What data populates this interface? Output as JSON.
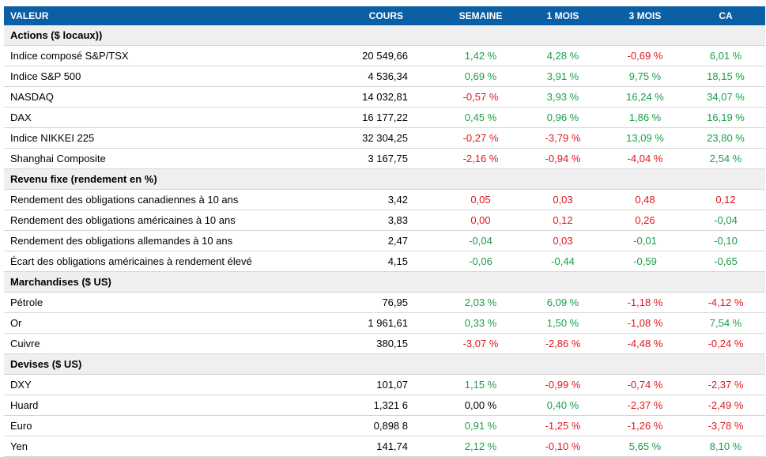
{
  "table": {
    "header": [
      "VALEUR",
      "COURS",
      "SEMAINE",
      "1 MOIS",
      "3 MOIS",
      "CA"
    ],
    "sections": [
      {
        "title": "Actions ($ locaux))",
        "rows": [
          {
            "cells": [
              "Indice composé S&P/TSX",
              "20 549,66",
              "1,42 %",
              "4,28 %",
              "-0,69 %",
              "6,01 %"
            ],
            "colors": [
              "#1a9e48",
              "#1a9e48",
              "#e0161b",
              "#1a9e48"
            ]
          },
          {
            "cells": [
              "Indice S&P 500",
              "4 536,34",
              "0,69 %",
              "3,91 %",
              "9,75 %",
              "18,15 %"
            ],
            "colors": [
              "#1a9e48",
              "#1a9e48",
              "#1a9e48",
              "#1a9e48"
            ]
          },
          {
            "cells": [
              "NASDAQ",
              "14 032,81",
              "-0,57 %",
              "3,93 %",
              "16,24 %",
              "34,07 %"
            ],
            "colors": [
              "#e0161b",
              "#1a9e48",
              "#1a9e48",
              "#1a9e48"
            ]
          },
          {
            "cells": [
              "DAX",
              "16 177,22",
              "0,45 %",
              "0,96 %",
              "1,86 %",
              "16,19 %"
            ],
            "colors": [
              "#1a9e48",
              "#1a9e48",
              "#1a9e48",
              "#1a9e48"
            ]
          },
          {
            "cells": [
              "Indice NIKKEI 225",
              "32 304,25",
              "-0,27 %",
              "-3,79 %",
              "13,09 %",
              "23,80 %"
            ],
            "colors": [
              "#e0161b",
              "#e0161b",
              "#1a9e48",
              "#1a9e48"
            ]
          },
          {
            "cells": [
              "Shanghai Composite",
              "3 167,75",
              "-2,16 %",
              "-0,94 %",
              "-4,04 %",
              "2,54 %"
            ],
            "colors": [
              "#e0161b",
              "#e0161b",
              "#e0161b",
              "#1a9e48"
            ]
          }
        ]
      },
      {
        "title": "Revenu fixe (rendement en %)",
        "rows": [
          {
            "cells": [
              "Rendement des obligations canadiennes à 10 ans",
              "3,42",
              "0,05",
              "0,03",
              "0,48",
              "0,12"
            ],
            "colors": [
              "#e0161b",
              "#e0161b",
              "#e0161b",
              "#e0161b"
            ]
          },
          {
            "cells": [
              "Rendement des obligations américaines à 10 ans",
              "3,83",
              "0,00",
              "0,12",
              "0,26",
              "-0,04"
            ],
            "colors": [
              "#e0161b",
              "#e0161b",
              "#e0161b",
              "#1a9e48"
            ]
          },
          {
            "cells": [
              "Rendement des obligations allemandes à 10 ans",
              "2,47",
              "-0,04",
              "0,03",
              "-0,01",
              "-0,10"
            ],
            "colors": [
              "#1a9e48",
              "#e0161b",
              "#1a9e48",
              "#1a9e48"
            ]
          },
          {
            "cells": [
              "Écart des obligations américaines à rendement élevé",
              "4,15",
              "-0,06",
              "-0,44",
              "-0,59",
              "-0,65"
            ],
            "colors": [
              "#1a9e48",
              "#1a9e48",
              "#1a9e48",
              "#1a9e48"
            ]
          }
        ]
      },
      {
        "title": "Marchandises ($ US)",
        "rows": [
          {
            "cells": [
              "Pétrole",
              "76,95",
              "2,03 %",
              "6,09 %",
              "-1,18 %",
              "-4,12 %"
            ],
            "colors": [
              "#1a9e48",
              "#1a9e48",
              "#e0161b",
              "#e0161b"
            ]
          },
          {
            "cells": [
              "Or",
              "1 961,61",
              "0,33 %",
              "1,50 %",
              "-1,08 %",
              "7,54 %"
            ],
            "colors": [
              "#1a9e48",
              "#1a9e48",
              "#e0161b",
              "#1a9e48"
            ]
          },
          {
            "cells": [
              "Cuivre",
              "380,15",
              "-3,07 %",
              "-2,86 %",
              "-4,48 %",
              "-0,24 %"
            ],
            "colors": [
              "#e0161b",
              "#e0161b",
              "#e0161b",
              "#e0161b"
            ]
          }
        ]
      },
      {
        "title": "Devises ($ US)",
        "rows": [
          {
            "cells": [
              "DXY",
              "101,07",
              "1,15 %",
              "-0,99 %",
              "-0,74 %",
              "-2,37 %"
            ],
            "colors": [
              "#1a9e48",
              "#e0161b",
              "#e0161b",
              "#e0161b"
            ]
          },
          {
            "cells": [
              "Huard",
              "1,321 6",
              "0,00 %",
              "0,40 %",
              "-2,37 %",
              "-2,49 %"
            ],
            "colors": [
              "#000000",
              "#1a9e48",
              "#e0161b",
              "#e0161b"
            ]
          },
          {
            "cells": [
              "Euro",
              "0,898 8",
              "0,91 %",
              "-1,25 %",
              "-1,26 %",
              "-3,78 %"
            ],
            "colors": [
              "#1a9e48",
              "#e0161b",
              "#e0161b",
              "#e0161b"
            ]
          },
          {
            "cells": [
              "Yen",
              "141,74",
              "2,12 %",
              "-0,10 %",
              "5,65 %",
              "8,10 %"
            ],
            "colors": [
              "#1a9e48",
              "#e0161b",
              "#1a9e48",
              "#1a9e48"
            ]
          }
        ]
      }
    ]
  }
}
